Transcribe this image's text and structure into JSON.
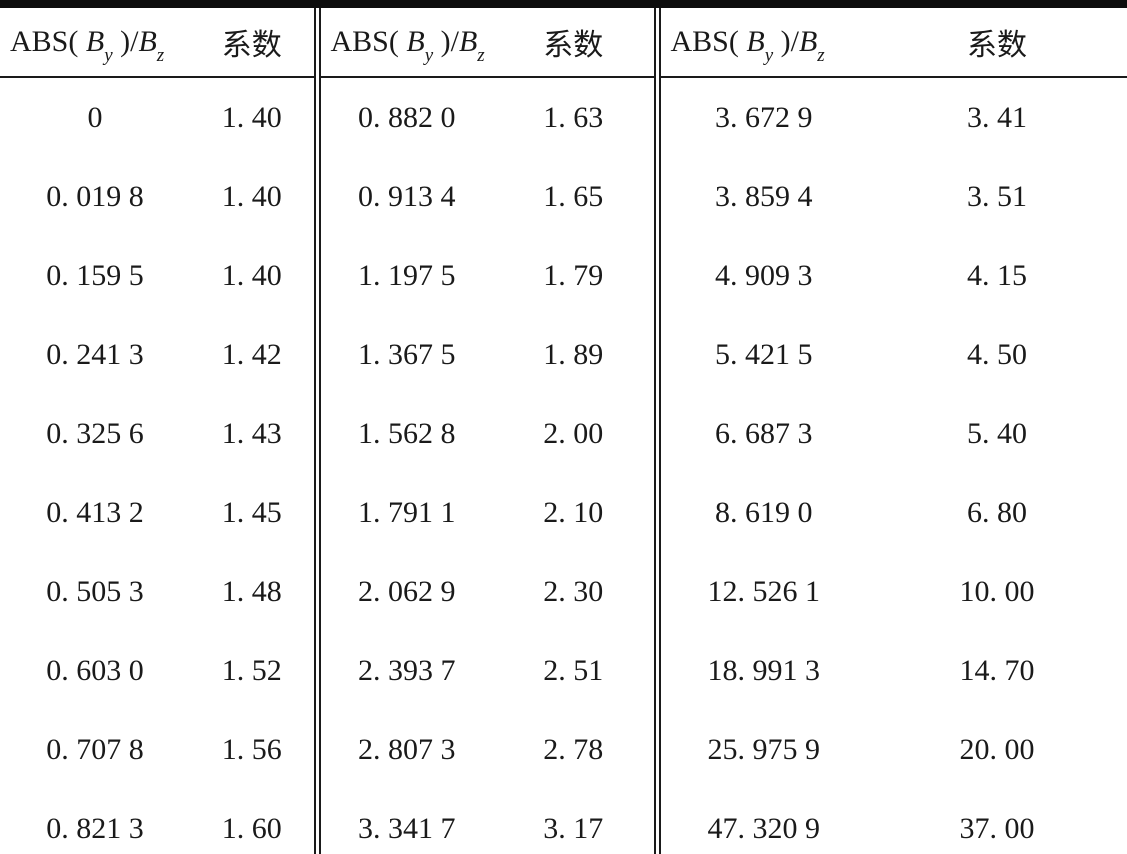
{
  "colors": {
    "text": "#1a1a1a",
    "background": "#ffffff",
    "rule": "#0d0d0d"
  },
  "table": {
    "header": {
      "abs_prefix": "ABS( ",
      "b_symbol": "B",
      "sub_y": "y",
      "paren_slash": " )/",
      "sub_z": "z",
      "coeff_label": "系数"
    },
    "columns_per_group": [
      "ABS(By)/Bz",
      "系数"
    ],
    "rows": [
      [
        "0",
        "1. 40",
        "0. 882 0",
        "1. 63",
        "3. 672 9",
        "3. 41"
      ],
      [
        "0. 019 8",
        "1. 40",
        "0. 913 4",
        "1. 65",
        "3. 859 4",
        "3. 51"
      ],
      [
        "0. 159 5",
        "1. 40",
        "1. 197 5",
        "1. 79",
        "4. 909 3",
        "4. 15"
      ],
      [
        "0. 241 3",
        "1. 42",
        "1. 367 5",
        "1. 89",
        "5. 421 5",
        "4. 50"
      ],
      [
        "0. 325 6",
        "1. 43",
        "1. 562 8",
        "2. 00",
        "6. 687 3",
        "5. 40"
      ],
      [
        "0. 413 2",
        "1. 45",
        "1. 791 1",
        "2. 10",
        "8. 619 0",
        "6. 80"
      ],
      [
        "0. 505 3",
        "1. 48",
        "2. 062 9",
        "2. 30",
        "12. 526 1",
        "10. 00"
      ],
      [
        "0. 603 0",
        "1. 52",
        "2. 393 7",
        "2. 51",
        "18. 991 3",
        "14. 70"
      ],
      [
        "0. 707 8",
        "1. 56",
        "2. 807 3",
        "2. 78",
        "25. 975 9",
        "20. 00"
      ],
      [
        "0. 821 3",
        "1. 60",
        "3. 341 7",
        "3. 17",
        "47. 320 9",
        "37. 00"
      ]
    ]
  }
}
